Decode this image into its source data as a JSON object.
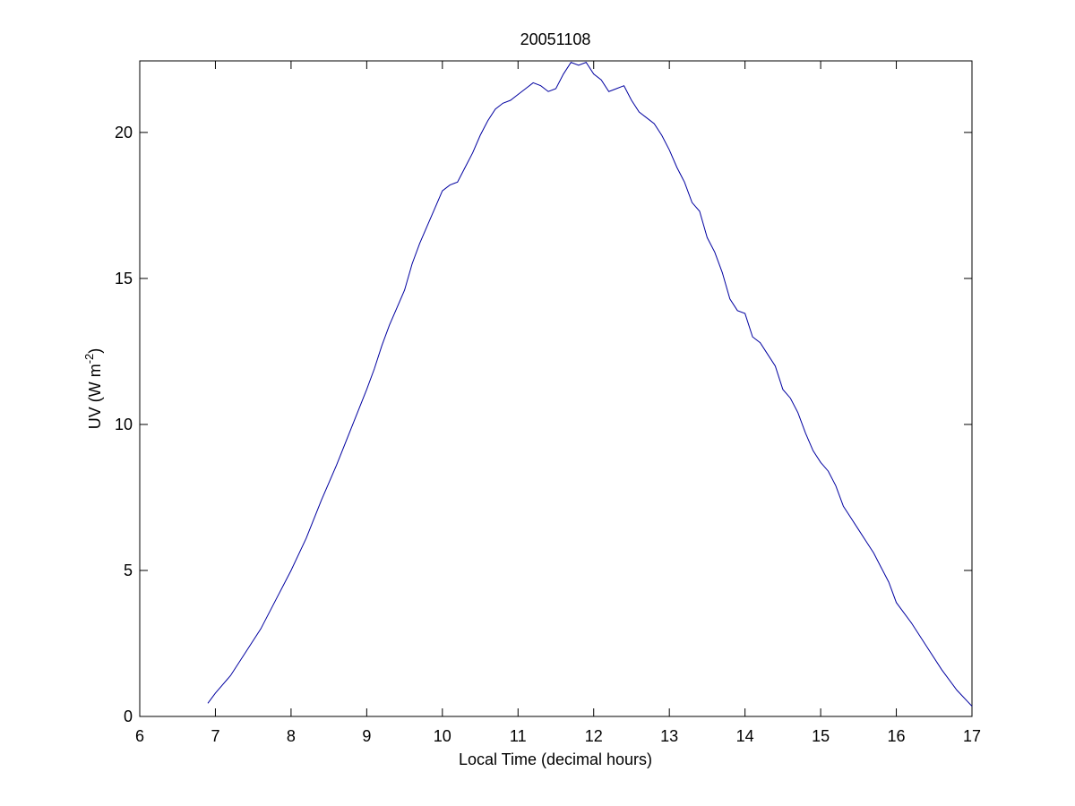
{
  "chart_data": {
    "type": "line",
    "title": "20051108",
    "x_label": "Local Time (decimal hours)",
    "y_label": {
      "text": "UV (W m",
      "superscript": "-2",
      "suffix": ")"
    },
    "x": [
      6.9,
      7.0,
      7.2,
      7.4,
      7.6,
      7.8,
      8.0,
      8.2,
      8.4,
      8.6,
      8.8,
      9.0,
      9.1,
      9.2,
      9.3,
      9.4,
      9.5,
      9.6,
      9.7,
      9.8,
      9.9,
      10.0,
      10.1,
      10.2,
      10.3,
      10.4,
      10.5,
      10.6,
      10.7,
      10.8,
      10.9,
      11.0,
      11.1,
      11.2,
      11.3,
      11.4,
      11.5,
      11.6,
      11.7,
      11.8,
      11.9,
      12.0,
      12.1,
      12.2,
      12.3,
      12.4,
      12.5,
      12.6,
      12.7,
      12.8,
      12.9,
      13.0,
      13.1,
      13.2,
      13.3,
      13.4,
      13.5,
      13.6,
      13.7,
      13.8,
      13.9,
      14.0,
      14.1,
      14.2,
      14.3,
      14.4,
      14.5,
      14.6,
      14.7,
      14.8,
      14.9,
      15.0,
      15.1,
      15.2,
      15.3,
      15.4,
      15.5,
      15.6,
      15.7,
      15.8,
      15.9,
      16.0,
      16.2,
      16.4,
      16.6,
      16.8,
      17.0
    ],
    "series": [
      {
        "color": "#0000a0",
        "values": [
          0.45,
          0.8,
          1.4,
          2.2,
          3.0,
          4.0,
          5.0,
          6.1,
          7.4,
          8.6,
          9.9,
          11.2,
          11.9,
          12.7,
          13.4,
          14.0,
          14.6,
          15.5,
          16.2,
          16.8,
          17.4,
          18.0,
          18.2,
          18.3,
          18.8,
          19.3,
          19.9,
          20.4,
          20.8,
          21.0,
          21.1,
          21.3,
          21.5,
          21.7,
          21.6,
          21.4,
          21.5,
          22.0,
          22.4,
          22.3,
          22.4,
          22.0,
          21.8,
          21.4,
          21.5,
          21.6,
          21.1,
          20.7,
          20.5,
          20.3,
          19.9,
          19.4,
          18.8,
          18.3,
          17.6,
          17.3,
          16.4,
          15.9,
          15.2,
          14.3,
          13.9,
          13.8,
          13.0,
          12.8,
          12.4,
          12.0,
          11.2,
          10.9,
          10.4,
          9.7,
          9.1,
          8.7,
          8.4,
          7.9,
          7.2,
          6.8,
          6.4,
          6.0,
          5.6,
          5.1,
          4.6,
          3.9,
          3.2,
          2.4,
          1.6,
          0.9,
          0.35
        ]
      }
    ],
    "xlim": [
      6,
      17
    ],
    "xticks": [
      6,
      7,
      8,
      9,
      10,
      11,
      12,
      13,
      14,
      15,
      16,
      17
    ],
    "ylim": [
      0,
      22.45
    ],
    "yticks": [
      0,
      5,
      10,
      15,
      20
    ],
    "grid": false
  }
}
